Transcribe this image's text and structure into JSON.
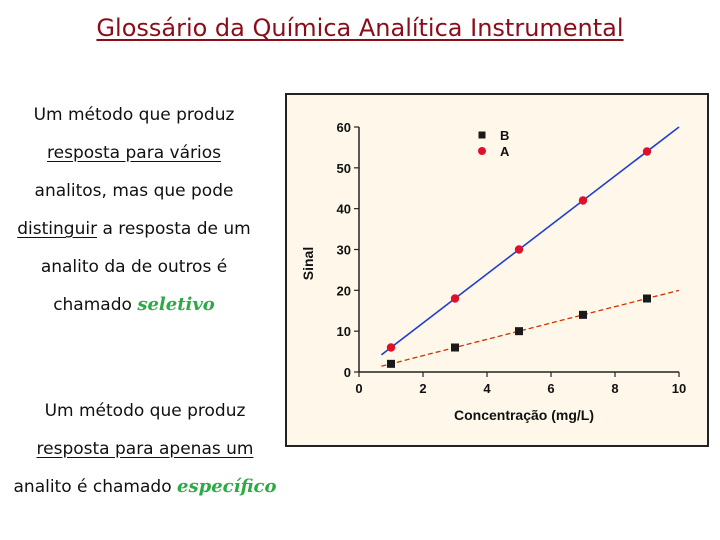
{
  "slide": {
    "title": "Glossário da Química Analítica Instrumental",
    "para1": {
      "line1": "Um método que produz",
      "line2": "resposta para vários",
      "line3": "analitos, mas que pode",
      "line4_underlined": "distinguir",
      "line4_rest": " a resposta de um",
      "line5": "analito da de outros é",
      "line6_text": "chamado ",
      "line6_keyword": "seletivo"
    },
    "para2": {
      "line1": "Um método que produz",
      "line2": "resposta para apenas um",
      "line3_text": "analito é chamado ",
      "line3_keyword": "específico"
    },
    "colors": {
      "title": "#8b0d1a",
      "keyword": "#2eaa45",
      "series_A": "#e0102a",
      "series_B": "#1a1a1a",
      "line_A": "#1f3fd0",
      "line_B": "#cc3300",
      "chart_bg": "#fff8ea"
    }
  },
  "chart_data": {
    "type": "scatter",
    "xlabel": "Concentração (mg/L)",
    "ylabel": "Sinal",
    "xlim": [
      0,
      10
    ],
    "ylim": [
      0,
      60
    ],
    "x_ticks": [
      0,
      2,
      4,
      6,
      8,
      10
    ],
    "y_ticks": [
      0,
      10,
      20,
      30,
      40,
      50,
      60
    ],
    "legend": [
      "B",
      "A"
    ],
    "legend_position": "top-right",
    "series": [
      {
        "name": "B",
        "marker": "square",
        "color": "#1a1a1a",
        "fit": "dashed",
        "fit_color": "#cc3300",
        "x": [
          1,
          3,
          5,
          7,
          9
        ],
        "y": [
          2,
          6,
          10,
          14,
          18
        ]
      },
      {
        "name": "A",
        "marker": "circle",
        "color": "#e0102a",
        "fit": "solid",
        "fit_color": "#1f3fd0",
        "x": [
          1,
          3,
          5,
          7,
          9
        ],
        "y": [
          6,
          18,
          30,
          42,
          54
        ]
      }
    ]
  }
}
